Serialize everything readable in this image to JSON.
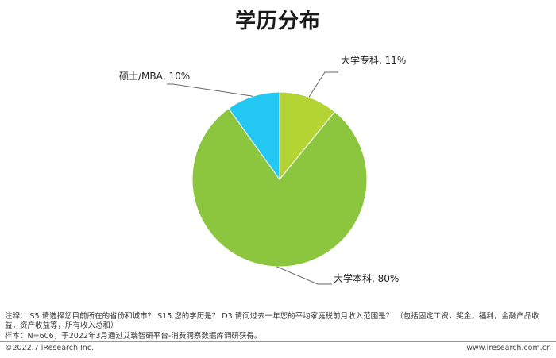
{
  "chart_data": {
    "type": "pie",
    "title": "学历分布",
    "slices": [
      {
        "label": "大学专科",
        "value": 11,
        "display": "大学专科, 11%",
        "color": "#b4d433"
      },
      {
        "label": "大学本科",
        "value": 80,
        "display": "大学本科, 80%",
        "color": "#8cc63f"
      },
      {
        "label": "硕士/MBA",
        "value": 10,
        "display": "硕士/MBA, 10%",
        "color": "#22c8f2"
      }
    ]
  },
  "footer": {
    "notes": "注释： S5.请选择您目前所在的省份和城市？ S15.您的学历是？ D3.请问过去一年您的平均家庭税前月收入范围是？ （包括固定工资，奖金，福利，金融产品收益，资产收益等，所有收入总和）",
    "sample": "样本：N=606，于2022年3月通过艾瑞智研平台-消费洞察数据库调研获得。",
    "copyright": "©2022.7 iResearch Inc.",
    "website": "www.iresearch.com.cn"
  }
}
